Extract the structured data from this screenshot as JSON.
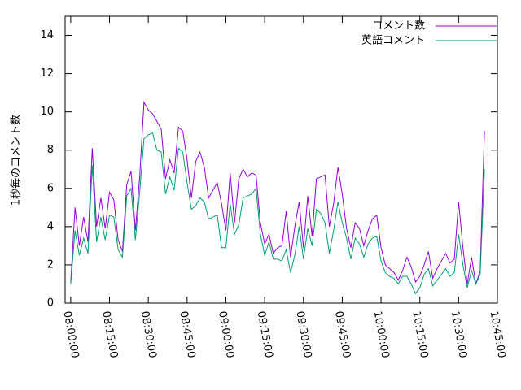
{
  "chart_data": {
    "type": "line",
    "y_label": "1秒毎のコメント数",
    "x": [
      "08:00:00",
      "08:01:40",
      "08:03:20",
      "08:05:00",
      "08:06:40",
      "08:08:20",
      "08:10:00",
      "08:11:40",
      "08:13:20",
      "08:15:00",
      "08:16:40",
      "08:18:20",
      "08:20:00",
      "08:21:40",
      "08:23:20",
      "08:25:00",
      "08:26:40",
      "08:28:20",
      "08:30:00",
      "08:31:40",
      "08:33:20",
      "08:35:00",
      "08:36:40",
      "08:38:20",
      "08:40:00",
      "08:41:40",
      "08:43:20",
      "08:45:00",
      "08:46:40",
      "08:48:20",
      "08:50:00",
      "08:51:40",
      "08:53:20",
      "08:55:00",
      "08:56:40",
      "08:58:20",
      "09:00:00",
      "09:01:40",
      "09:03:20",
      "09:05:00",
      "09:06:40",
      "09:08:20",
      "09:10:00",
      "09:11:40",
      "09:13:20",
      "09:15:00",
      "09:16:40",
      "09:18:20",
      "09:20:00",
      "09:21:40",
      "09:23:20",
      "09:25:00",
      "09:26:40",
      "09:28:20",
      "09:30:00",
      "09:31:40",
      "09:33:20",
      "09:35:00",
      "09:36:40",
      "09:38:20",
      "09:40:00",
      "09:41:40",
      "09:43:20",
      "09:45:00",
      "09:46:40",
      "09:48:20",
      "09:50:00",
      "09:51:40",
      "09:53:20",
      "09:55:00",
      "09:56:40",
      "09:58:20",
      "10:00:00",
      "10:01:40",
      "10:03:20",
      "10:05:00",
      "10:06:40",
      "10:08:20",
      "10:10:00",
      "10:11:40",
      "10:13:20",
      "10:15:00",
      "10:16:40",
      "10:18:20",
      "10:20:00",
      "10:21:40",
      "10:23:20",
      "10:25:00",
      "10:26:40",
      "10:28:20",
      "10:30:00",
      "10:31:40",
      "10:33:20",
      "10:35:00",
      "10:36:40",
      "10:38:20",
      "10:40:00"
    ],
    "series": [
      {
        "name": "コメント数",
        "color": "#9400d3",
        "values": [
          1.1,
          5.0,
          3.0,
          4.5,
          3.2,
          8.1,
          4.0,
          5.5,
          3.9,
          5.8,
          5.4,
          3.3,
          2.7,
          6.2,
          6.9,
          3.8,
          6.6,
          10.5,
          10.1,
          9.9,
          9.5,
          9.1,
          6.5,
          7.5,
          6.8,
          9.2,
          9.0,
          7.5,
          5.5,
          7.4,
          7.9,
          7.1,
          5.5,
          5.9,
          6.3,
          5.2,
          3.8,
          6.8,
          4.2,
          6.5,
          7.0,
          6.6,
          6.8,
          6.7,
          4.2,
          3.1,
          3.6,
          2.6,
          2.9,
          3.0,
          4.8,
          2.4,
          4.0,
          5.3,
          2.9,
          5.6,
          3.5,
          6.5,
          6.6,
          6.7,
          4.0,
          5.2,
          7.1,
          5.7,
          3.9,
          2.9,
          4.2,
          3.9,
          3.0,
          3.8,
          4.4,
          4.6,
          2.9,
          2.0,
          1.8,
          1.6,
          1.2,
          1.7,
          2.4,
          1.9,
          1.1,
          1.4,
          2.0,
          2.7,
          1.3,
          1.8,
          2.2,
          2.6,
          2.1,
          2.3,
          5.3,
          2.9,
          1.0,
          2.4,
          1.0,
          1.7,
          9.0
        ]
      },
      {
        "name": "英語コメント",
        "color": "#009e73",
        "values": [
          1.0,
          3.8,
          2.5,
          3.4,
          2.6,
          7.2,
          3.2,
          4.5,
          3.3,
          4.6,
          4.5,
          2.8,
          2.4,
          5.6,
          6.0,
          3.3,
          5.8,
          8.6,
          8.8,
          8.9,
          8.0,
          7.9,
          5.7,
          6.6,
          5.9,
          8.1,
          7.9,
          6.3,
          4.9,
          5.1,
          5.5,
          5.3,
          4.4,
          4.5,
          4.6,
          2.9,
          2.9,
          5.2,
          3.6,
          4.1,
          5.5,
          5.6,
          5.7,
          6.0,
          3.6,
          2.5,
          3.2,
          2.3,
          2.3,
          2.2,
          2.8,
          1.6,
          2.5,
          4.0,
          2.3,
          3.9,
          3.0,
          4.9,
          4.7,
          4.2,
          2.6,
          3.8,
          5.3,
          4.2,
          3.4,
          2.3,
          3.4,
          3.1,
          2.4,
          3.1,
          3.4,
          3.5,
          2.2,
          1.6,
          1.4,
          1.3,
          1.0,
          1.4,
          1.4,
          1.0,
          0.5,
          0.8,
          1.5,
          1.8,
          0.9,
          1.2,
          1.5,
          1.8,
          1.4,
          1.6,
          3.6,
          2.0,
          0.8,
          1.7,
          1.0,
          1.5,
          7.0
        ]
      }
    ],
    "xlim": [
      "07:57:50",
      "10:45:00"
    ],
    "xticks": [
      "08:00:00",
      "08:15:00",
      "08:30:00",
      "08:45:00",
      "09:00:00",
      "09:15:00",
      "09:30:00",
      "09:45:00",
      "10:00:00",
      "10:15:00",
      "10:30:00",
      "10:45:00"
    ],
    "ylim": [
      0,
      15
    ],
    "yticks": [
      0,
      2,
      4,
      6,
      8,
      10,
      12,
      14
    ],
    "legend": "top-right"
  }
}
